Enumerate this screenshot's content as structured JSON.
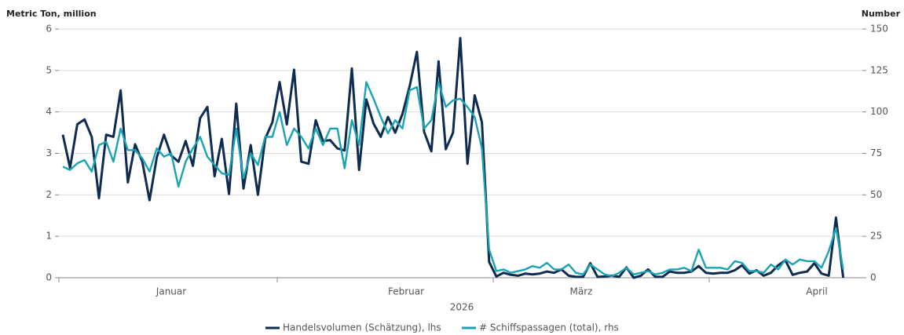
{
  "chart_data": {
    "type": "line",
    "ylabel": "Metric Ton, million",
    "y2label": "Number",
    "xlabel": "2026",
    "months": [
      "Januar",
      "Februar",
      "März",
      "April"
    ],
    "ylim": [
      0,
      6
    ],
    "yticks": [
      0,
      1,
      2,
      3,
      4,
      5,
      6
    ],
    "y2lim": [
      0,
      150
    ],
    "y2ticks": [
      0,
      25,
      50,
      75,
      100,
      125,
      150
    ],
    "grid": true,
    "legend": "bottom",
    "series": [
      {
        "name": "Handelsvolumen (Schätzung), lhs",
        "color": "#0e2b50",
        "axis": "y",
        "values": [
          3.45,
          2.65,
          3.7,
          3.82,
          3.4,
          1.92,
          3.45,
          3.4,
          4.52,
          2.3,
          3.22,
          2.8,
          1.87,
          2.9,
          3.45,
          2.95,
          2.8,
          3.3,
          2.7,
          3.85,
          4.12,
          2.45,
          3.35,
          2.02,
          4.2,
          2.15,
          3.2,
          2.0,
          3.35,
          3.75,
          4.72,
          3.7,
          5.02,
          2.8,
          2.75,
          3.8,
          3.3,
          3.32,
          3.12,
          3.07,
          5.05,
          2.6,
          4.3,
          3.72,
          3.4,
          3.88,
          3.5,
          3.95,
          4.62,
          5.45,
          3.52,
          3.05,
          5.22,
          3.1,
          3.5,
          5.78,
          2.75,
          4.4,
          3.75,
          0.38,
          0.03,
          0.12,
          0.07,
          0.05,
          0.1,
          0.08,
          0.1,
          0.15,
          0.12,
          0.2,
          0.05,
          0.02,
          0.02,
          0.35,
          0.02,
          0.03,
          0.05,
          0.02,
          0.25,
          0.0,
          0.05,
          0.2,
          0.02,
          0.02,
          0.15,
          0.12,
          0.12,
          0.15,
          0.28,
          0.12,
          0.1,
          0.12,
          0.12,
          0.18,
          0.3,
          0.1,
          0.18,
          0.05,
          0.12,
          0.3,
          0.42,
          0.07,
          0.12,
          0.15,
          0.35,
          0.1,
          0.05,
          1.45,
          0.0
        ]
      },
      {
        "name": "# Schiffspassagen (total), rhs",
        "color": "#1aa3b3",
        "axis": "y2",
        "values": [
          67,
          65,
          69,
          71,
          64,
          80,
          82,
          70,
          90,
          77,
          77,
          72,
          64,
          78,
          73,
          75,
          55,
          70,
          78,
          85,
          73,
          68,
          63,
          62,
          90,
          60,
          75,
          68,
          85,
          85,
          100,
          80,
          90,
          85,
          78,
          90,
          80,
          90,
          90,
          66,
          95,
          80,
          118,
          108,
          97,
          87,
          95,
          90,
          113,
          115,
          90,
          95,
          118,
          103,
          107,
          108,
          103,
          97,
          78,
          17,
          4,
          5,
          3,
          4,
          5,
          7,
          6,
          9,
          5,
          5,
          8,
          3,
          2,
          8,
          5,
          2,
          1,
          3,
          6,
          2,
          3,
          4,
          2,
          3,
          5,
          5,
          6,
          4,
          17,
          6,
          6,
          6,
          5,
          10,
          9,
          4,
          4,
          3,
          8,
          5,
          11,
          8,
          11,
          10,
          10,
          6,
          16,
          30,
          5
        ]
      }
    ]
  }
}
